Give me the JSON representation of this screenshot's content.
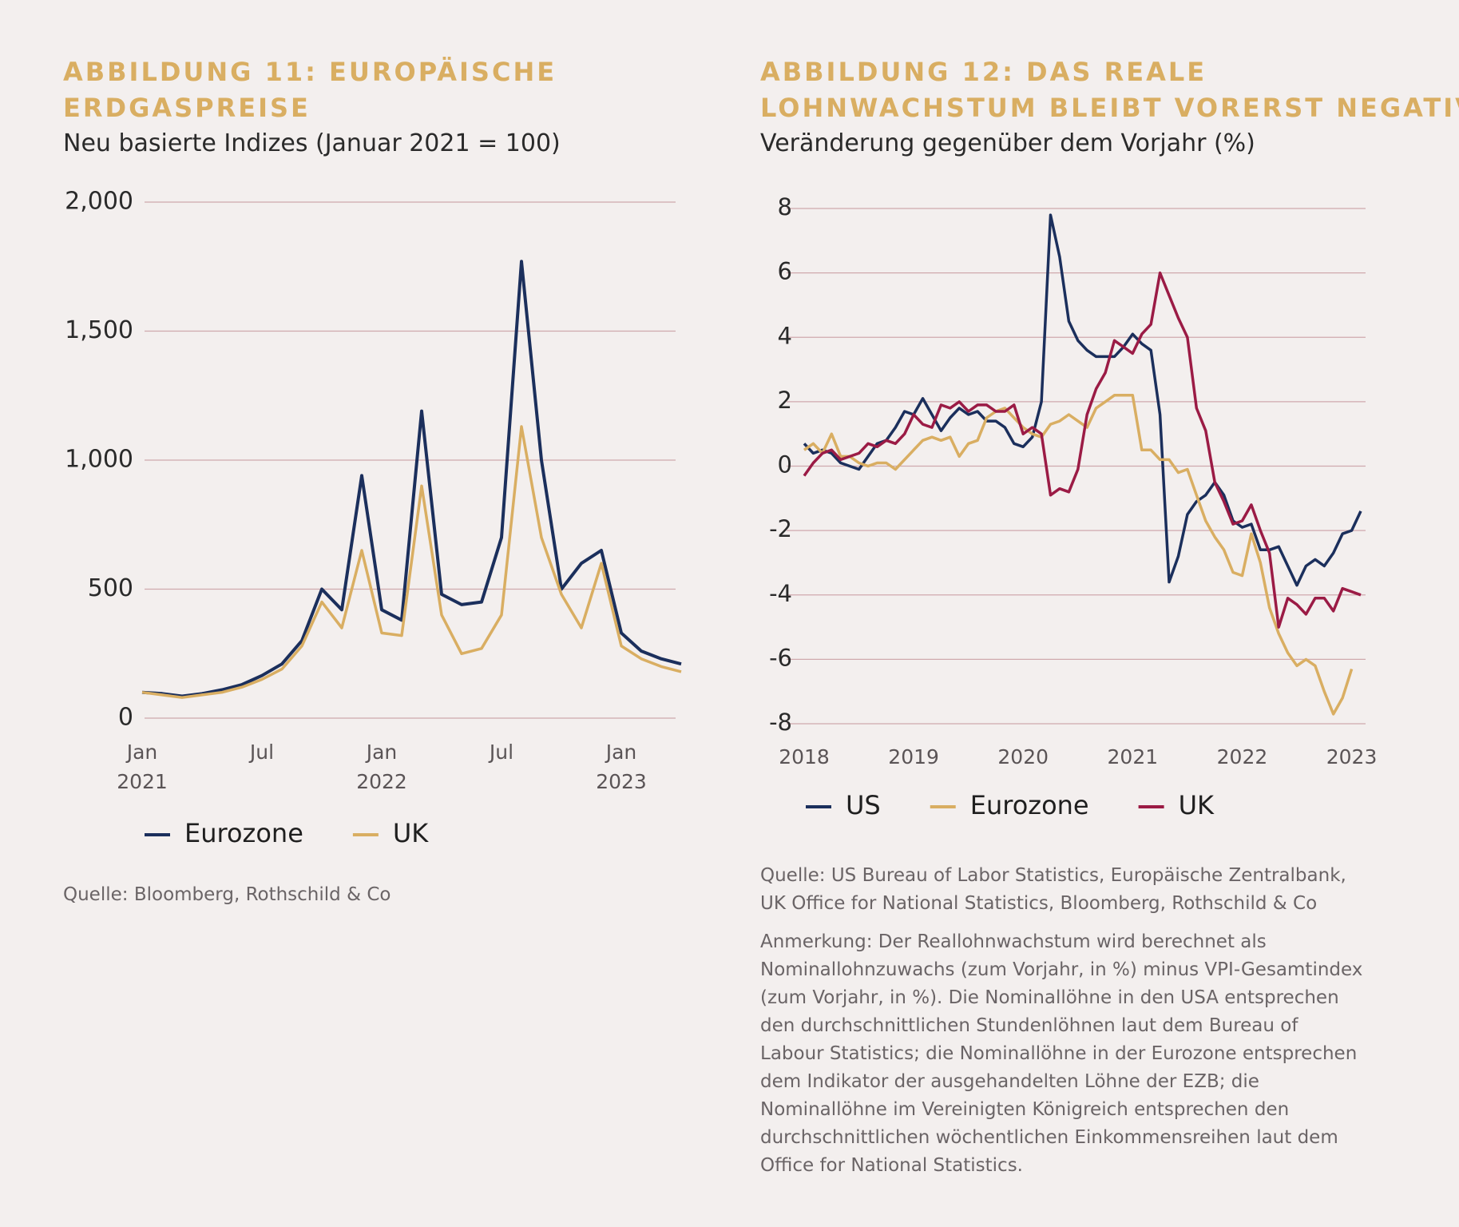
{
  "chart_data": [
    {
      "type": "line",
      "title": [
        "ABBILDUNG 11: EUROPÄISCHE",
        "ERDGASPREISE"
      ],
      "subtitle": "Neu basierte Indizes (Januar 2021 = 100)",
      "x": [
        "2021-01",
        "2021-02",
        "2021-03",
        "2021-04",
        "2021-05",
        "2021-06",
        "2021-07",
        "2021-08",
        "2021-09",
        "2021-10",
        "2021-11",
        "2021-12",
        "2022-01",
        "2022-02",
        "2022-03",
        "2022-04",
        "2022-05",
        "2022-06",
        "2022-07",
        "2022-08",
        "2022-09",
        "2022-10",
        "2022-11",
        "2022-12",
        "2023-01",
        "2023-02",
        "2023-03",
        "2023-04"
      ],
      "series": [
        {
          "name": "Eurozone",
          "color": "#1b2f5c",
          "values": [
            100,
            95,
            85,
            95,
            110,
            130,
            165,
            210,
            300,
            500,
            420,
            940,
            420,
            380,
            1190,
            480,
            440,
            450,
            700,
            1770,
            1000,
            500,
            600,
            650,
            330,
            260,
            230,
            210
          ]
        },
        {
          "name": "UK",
          "color": "#d9ae62",
          "values": [
            100,
            90,
            80,
            90,
            100,
            120,
            150,
            190,
            280,
            450,
            350,
            650,
            330,
            320,
            900,
            400,
            250,
            270,
            400,
            1130,
            700,
            480,
            350,
            600,
            280,
            230,
            200,
            180
          ]
        }
      ],
      "xlim": [
        "2021-01",
        "2023-04"
      ],
      "xticks": [
        {
          "value": "2021-01",
          "label": "Jan 2021"
        },
        {
          "value": "2021-07",
          "label": "Jul"
        },
        {
          "value": "2022-01",
          "label": "Jan 2022"
        },
        {
          "value": "2022-07",
          "label": "Jul"
        },
        {
          "value": "2023-01",
          "label": "Jan 2023"
        }
      ],
      "ylim": [
        0,
        2000
      ],
      "yticks": [
        0,
        500,
        {
          "value": 1000,
          "label": "1,000"
        },
        {
          "value": 1500,
          "label": "1,500"
        },
        {
          "value": 2000,
          "label": "2,000"
        }
      ],
      "grid": true,
      "legend": "bottom",
      "source": "Quelle: Bloomberg, Rothschild & Co"
    },
    {
      "type": "line",
      "title": [
        "ABBILDUNG 12: DAS REALE",
        "LOHNWACHSTUM BLEIBT VORERST NEGATIV"
      ],
      "subtitle": "Veränderung gegenüber dem Vorjahr (%)",
      "x": [
        "2018-01",
        "2018-02",
        "2018-03",
        "2018-04",
        "2018-05",
        "2018-06",
        "2018-07",
        "2018-08",
        "2018-09",
        "2018-10",
        "2018-11",
        "2018-12",
        "2019-01",
        "2019-02",
        "2019-03",
        "2019-04",
        "2019-05",
        "2019-06",
        "2019-07",
        "2019-08",
        "2019-09",
        "2019-10",
        "2019-11",
        "2019-12",
        "2020-01",
        "2020-02",
        "2020-03",
        "2020-04",
        "2020-05",
        "2020-06",
        "2020-07",
        "2020-08",
        "2020-09",
        "2020-10",
        "2020-11",
        "2020-12",
        "2021-01",
        "2021-02",
        "2021-03",
        "2021-04",
        "2021-05",
        "2021-06",
        "2021-07",
        "2021-08",
        "2021-09",
        "2021-10",
        "2021-11",
        "2021-12",
        "2022-01",
        "2022-02",
        "2022-03",
        "2022-04",
        "2022-05",
        "2022-06",
        "2022-07",
        "2022-08",
        "2022-09",
        "2022-10",
        "2022-11",
        "2022-12",
        "2023-01",
        "2023-02"
      ],
      "series": [
        {
          "name": "US",
          "color": "#1b2f5c",
          "values": [
            0.7,
            0.4,
            0.5,
            0.4,
            0.1,
            0.0,
            -0.1,
            0.3,
            0.7,
            0.8,
            1.2,
            1.7,
            1.6,
            2.1,
            1.6,
            1.1,
            1.5,
            1.8,
            1.6,
            1.7,
            1.4,
            1.4,
            1.2,
            0.7,
            0.6,
            0.9,
            2.0,
            7.8,
            6.5,
            4.5,
            3.9,
            3.6,
            3.4,
            3.4,
            3.4,
            3.7,
            4.1,
            3.8,
            3.6,
            1.6,
            -3.6,
            -2.8,
            -1.5,
            -1.1,
            -0.9,
            -0.5,
            -0.9,
            -1.7,
            -1.9,
            -1.8,
            -2.6,
            -2.6,
            -2.5,
            -3.1,
            -3.7,
            -3.1,
            -2.9,
            -3.1,
            -2.7,
            -2.1,
            -2.0,
            -1.4
          ]
        },
        {
          "name": "Eurozone",
          "color": "#d9ae62",
          "values": [
            0.5,
            0.7,
            0.4,
            1.0,
            0.3,
            0.3,
            0.1,
            0.0,
            0.1,
            0.1,
            -0.1,
            0.2,
            0.5,
            0.8,
            0.9,
            0.8,
            0.9,
            0.3,
            0.7,
            0.8,
            1.5,
            1.7,
            1.8,
            1.5,
            1.2,
            1.0,
            0.9,
            1.3,
            1.4,
            1.6,
            1.4,
            1.2,
            1.8,
            2.0,
            2.2,
            2.2,
            2.2,
            0.5,
            0.5,
            0.2,
            0.2,
            -0.2,
            -0.1,
            -0.9,
            -1.7,
            -2.2,
            -2.6,
            -3.3,
            -3.4,
            -2.1,
            -3.0,
            -4.4,
            -5.2,
            -5.8,
            -6.2,
            -6.0,
            -6.2,
            -7.0,
            -7.7,
            -7.2,
            -6.3,
            null
          ]
        },
        {
          "name": "UK",
          "color": "#9b1b45",
          "values": [
            -0.3,
            0.1,
            0.4,
            0.5,
            0.2,
            0.3,
            0.4,
            0.7,
            0.6,
            0.8,
            0.7,
            1.0,
            1.6,
            1.3,
            1.2,
            1.9,
            1.8,
            2.0,
            1.7,
            1.9,
            1.9,
            1.7,
            1.7,
            1.9,
            1.0,
            1.2,
            1.0,
            -0.9,
            -0.7,
            -0.8,
            -0.1,
            1.6,
            2.4,
            2.9,
            3.9,
            3.7,
            3.5,
            4.1,
            4.4,
            6.0,
            5.3,
            4.6,
            4.0,
            1.8,
            1.1,
            -0.5,
            -1.1,
            -1.8,
            -1.7,
            -1.2,
            -2.0,
            -2.7,
            -5.0,
            -4.1,
            -4.3,
            -4.6,
            -4.1,
            -4.1,
            -4.5,
            -3.8,
            -3.9,
            -4.0
          ]
        }
      ],
      "xlim": [
        "2018-01",
        "2023-02"
      ],
      "xticks": [
        {
          "value": "2018-01",
          "label": "2018"
        },
        {
          "value": "2019-01",
          "label": "2019"
        },
        {
          "value": "2020-01",
          "label": "2020"
        },
        {
          "value": "2021-01",
          "label": "2021"
        },
        {
          "value": "2022-01",
          "label": "2022"
        },
        {
          "value": "2023-01",
          "label": "2023"
        }
      ],
      "ylim": [
        -8,
        8
      ],
      "yticks": [
        -8,
        -6,
        -4,
        -2,
        0,
        2,
        4,
        6,
        8
      ],
      "grid": true,
      "legend": "bottom",
      "source": "Quelle: US Bureau of Labor Statistics, Europäische Zentralbank, UK Office for National Statistics, Bloomberg, Rothschild & Co",
      "note": "Anmerkung: Der Reallohnwachstum wird berechnet als Nominallohnzuwachs (zum Vorjahr, in %) minus VPI-Gesamtindex (zum Vorjahr, in %). Die Nominallöhne in den USA entsprechen den durchschnittlichen Stundenlöhnen laut dem Bureau of Labour Statistics; die Nominallöhne in der Eurozone entsprechen dem Indikator der ausgehandelten Löhne der EZB; die Nominallöhne im Vereinigten Königreich entsprechen den durchschnittlichen wöchentlichen Einkommensreihen laut dem Office for National Statistics."
    }
  ]
}
